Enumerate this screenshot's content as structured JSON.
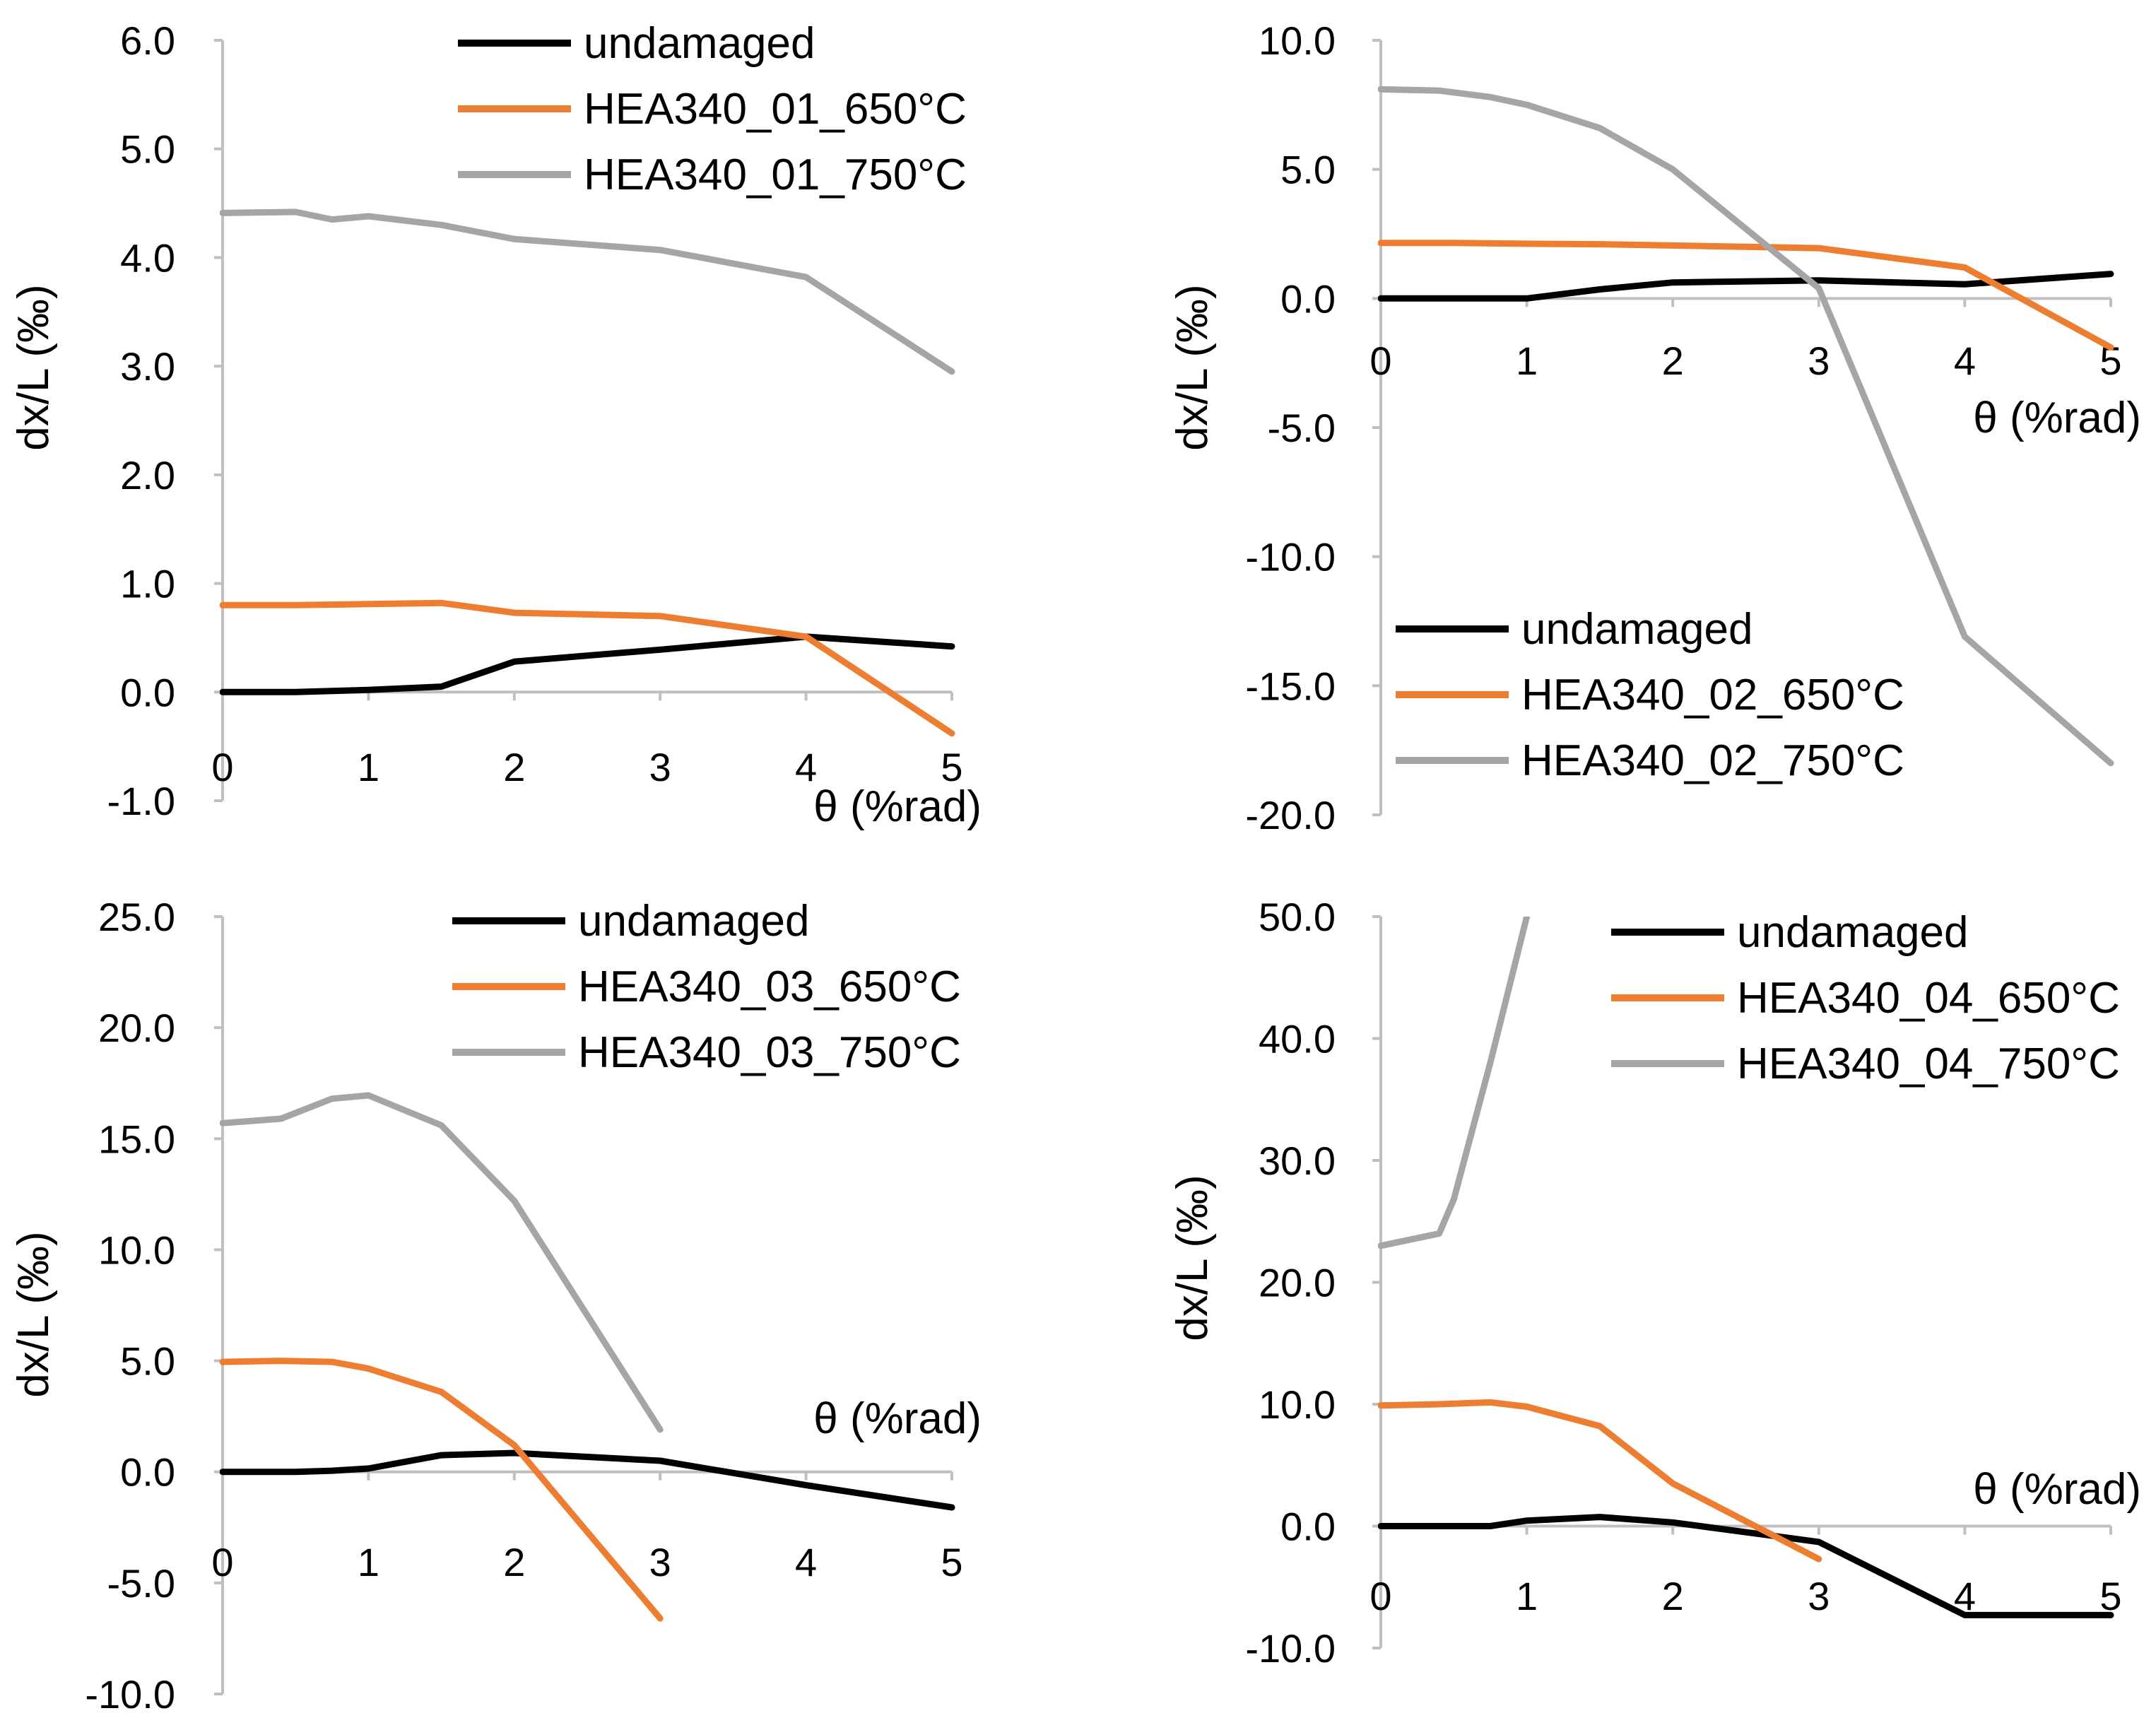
{
  "colors": {
    "undamaged": "#000000",
    "c650": "#ED7D31",
    "c750": "#A5A5A5",
    "axis": "#BFBFBF"
  },
  "chart_data": [
    {
      "type": "line",
      "xlabel": "θ (%rad)",
      "ylabel": "dx/L (‰)",
      "xlim": [
        0,
        5
      ],
      "ylim": [
        -1,
        6
      ],
      "xticks": [
        "0",
        "1",
        "2",
        "3",
        "4",
        "5"
      ],
      "yticks": [
        "-1.0",
        "0.0",
        "1.0",
        "2.0",
        "3.0",
        "4.0",
        "5.0",
        "6.0"
      ],
      "legend_position": "top-right",
      "series": [
        {
          "name": "undamaged",
          "color": "#000000",
          "x": [
            0,
            0.5,
            1,
            1.5,
            2,
            3,
            4,
            5
          ],
          "y": [
            0.0,
            0.0,
            0.02,
            0.05,
            0.28,
            0.39,
            0.51,
            0.42
          ]
        },
        {
          "name": "HEA340_01_650°C",
          "color": "#ED7D31",
          "x": [
            0,
            0.5,
            1,
            1.5,
            2,
            3,
            4,
            5
          ],
          "y": [
            0.8,
            0.8,
            0.81,
            0.82,
            0.73,
            0.7,
            0.51,
            -0.38
          ]
        },
        {
          "name": "HEA340_01_750°C",
          "color": "#A5A5A5",
          "x": [
            0,
            0.5,
            0.75,
            1,
            1.5,
            2,
            3,
            4,
            5
          ],
          "y": [
            4.41,
            4.42,
            4.35,
            4.38,
            4.3,
            4.17,
            4.07,
            3.82,
            2.95
          ]
        }
      ]
    },
    {
      "type": "line",
      "xlabel": "θ (%rad)",
      "ylabel": "dx/L (‰)",
      "xlim": [
        0,
        5
      ],
      "ylim": [
        -20,
        10
      ],
      "xticks": [
        "0",
        "1",
        "2",
        "3",
        "4",
        "5"
      ],
      "yticks": [
        "-20.0",
        "-15.0",
        "-10.0",
        "-5.0",
        "0.0",
        "5.0",
        "10.0"
      ],
      "legend_position": "bottom-left",
      "series": [
        {
          "name": "undamaged",
          "color": "#000000",
          "x": [
            0,
            0.5,
            1,
            1.5,
            2,
            3,
            4,
            5
          ],
          "y": [
            0.0,
            0.0,
            0.0,
            0.35,
            0.62,
            0.7,
            0.55,
            0.95
          ]
        },
        {
          "name": "HEA340_02_650°C",
          "color": "#ED7D31",
          "x": [
            0,
            0.5,
            1,
            1.5,
            2,
            3,
            4,
            5
          ],
          "y": [
            2.15,
            2.15,
            2.12,
            2.1,
            2.05,
            1.95,
            1.2,
            -1.9
          ]
        },
        {
          "name": "HEA340_02_750°C",
          "color": "#A5A5A5",
          "x": [
            0,
            0.4,
            0.75,
            1,
            1.5,
            2,
            3,
            4,
            5
          ],
          "y": [
            8.1,
            8.05,
            7.8,
            7.5,
            6.6,
            5.0,
            0.4,
            -13.1,
            -18.0
          ]
        }
      ]
    },
    {
      "type": "line",
      "xlabel": "θ (%rad)",
      "ylabel": "dx/L (‰)",
      "xlim": [
        0,
        5
      ],
      "ylim": [
        -10,
        25
      ],
      "xticks": [
        "0",
        "1",
        "2",
        "3",
        "4",
        "5"
      ],
      "yticks": [
        "-10.0",
        "-5.0",
        "0.0",
        "5.0",
        "10.0",
        "15.0",
        "20.0",
        "25.0"
      ],
      "legend_position": "top-right",
      "series": [
        {
          "name": "undamaged",
          "color": "#000000",
          "x": [
            0,
            0.5,
            0.75,
            1,
            1.5,
            2,
            3,
            4,
            5
          ],
          "y": [
            0.0,
            0.0,
            0.05,
            0.15,
            0.75,
            0.85,
            0.5,
            -0.6,
            -1.6
          ]
        },
        {
          "name": "HEA340_03_650°C",
          "color": "#ED7D31",
          "x": [
            0,
            0.4,
            0.75,
            1,
            1.5,
            2,
            3
          ],
          "y": [
            4.95,
            5.0,
            4.95,
            4.65,
            3.6,
            1.2,
            -6.6
          ]
        },
        {
          "name": "HEA340_03_750°C",
          "color": "#A5A5A5",
          "x": [
            0,
            0.4,
            0.75,
            1,
            1.5,
            2,
            3
          ],
          "y": [
            15.7,
            15.9,
            16.8,
            16.95,
            15.6,
            12.2,
            1.9
          ]
        }
      ]
    },
    {
      "type": "line",
      "xlabel": "θ (%rad)",
      "ylabel": "dx/L (‰)",
      "xlim": [
        0,
        5
      ],
      "ylim": [
        -10,
        50
      ],
      "xticks": [
        "0",
        "1",
        "2",
        "3",
        "4",
        "5"
      ],
      "yticks": [
        "-10.0",
        "0.0",
        "10.0",
        "20.0",
        "30.0",
        "40.0",
        "50.0"
      ],
      "legend_position": "top-right",
      "series": [
        {
          "name": "undamaged",
          "color": "#000000",
          "x": [
            0,
            0.4,
            0.75,
            1,
            1.5,
            2,
            3,
            4,
            5
          ],
          "y": [
            0.0,
            0.0,
            0.0,
            0.45,
            0.75,
            0.3,
            -1.3,
            -7.3,
            -7.3
          ]
        },
        {
          "name": "HEA340_04_650°C",
          "color": "#ED7D31",
          "x": [
            0,
            0.4,
            0.75,
            1,
            1.5,
            2,
            3
          ],
          "y": [
            9.9,
            10.0,
            10.15,
            9.8,
            8.2,
            3.5,
            -2.7
          ]
        },
        {
          "name": "HEA340_04_750°C",
          "color": "#A5A5A5",
          "x": [
            0,
            0.4,
            0.5,
            0.75,
            1
          ],
          "y": [
            23.0,
            24.0,
            26.8,
            38.0,
            50.0
          ]
        }
      ]
    }
  ]
}
